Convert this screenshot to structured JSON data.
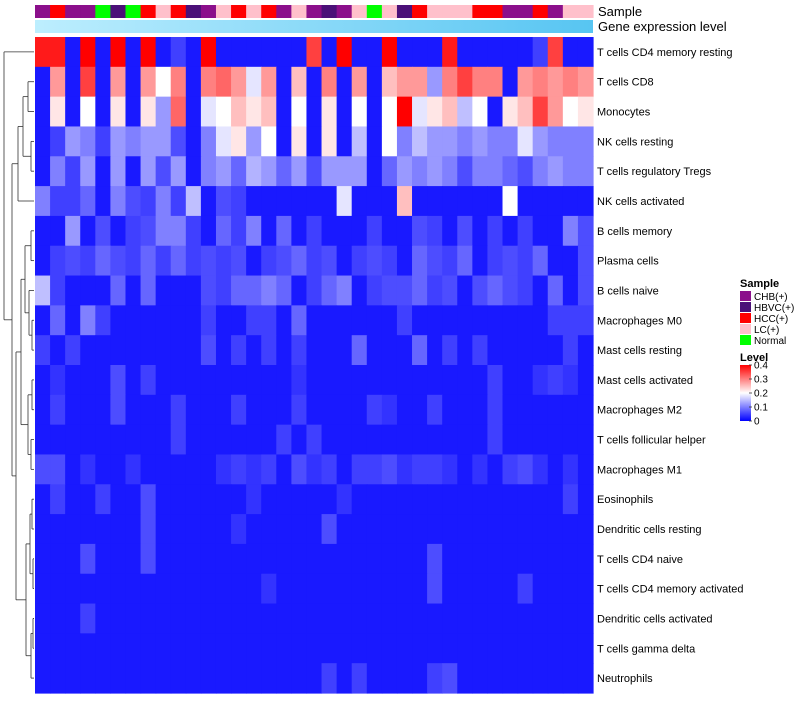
{
  "chart_data": {
    "type": "heatmap",
    "annotation_labels": {
      "sample": "Sample",
      "expression": "Gene expression level"
    },
    "sample_colors": {
      "CHB(+)": "#8B0F8B",
      "HBVC(+)": "#4B1078",
      "HCC(+)": "#FF0000",
      "LC(+)": "#FFC0CB",
      "Normal": "#00FF00"
    },
    "sample_groups": [
      "CHB(+)",
      "HCC(+)",
      "CHB(+)",
      "CHB(+)",
      "Normal",
      "HBVC(+)",
      "Normal",
      "HCC(+)",
      "LC(+)",
      "HCC(+)",
      "HBVC(+)",
      "CHB(+)",
      "LC(+)",
      "HCC(+)",
      "LC(+)",
      "HCC(+)",
      "CHB(+)",
      "LC(+)",
      "CHB(+)",
      "HBVC(+)",
      "CHB(+)",
      "LC(+)",
      "Normal",
      "LC(+)",
      "HBVC(+)",
      "HCC(+)",
      "LC(+)",
      "LC(+)",
      "LC(+)",
      "HCC(+)",
      "HCC(+)",
      "CHB(+)",
      "CHB(+)",
      "HCC(+)",
      "CHB(+)",
      "LC(+)",
      "LC(+)"
    ],
    "expression_gradient": [
      "#bdeefe",
      "#57c5f2"
    ],
    "rows": [
      "T cells CD4 memory resting",
      "T cells CD8",
      "Monocytes",
      "NK cells resting",
      "T cells regulatory  Tregs",
      "NK cells activated",
      "B cells memory",
      "Plasma cells",
      "B cells naive",
      "Macrophages M0",
      "Mast cells resting",
      "Mast cells activated",
      "Macrophages M2",
      "T cells follicular helper",
      "Macrophages M1",
      "Eosinophils",
      "Dendritic cells resting",
      "T cells CD4 naive",
      "T cells CD4 memory activated",
      "Dendritic cells activated",
      "T cells gamma delta",
      "Neutrophils"
    ],
    "values": [
      [
        0.38,
        0.38,
        0.02,
        0.42,
        0.02,
        0.42,
        0.02,
        0.42,
        0.02,
        0.05,
        0.02,
        0.42,
        0.02,
        0.02,
        0.02,
        0.02,
        0.02,
        0.02,
        0.35,
        0.02,
        0.42,
        0.02,
        0.02,
        0.42,
        0.02,
        0.02,
        0.02,
        0.38,
        0.02,
        0.02,
        0.02,
        0.02,
        0.02,
        0.05,
        0.35,
        0.02,
        0.02
      ],
      [
        0.02,
        0.28,
        0.02,
        0.35,
        0.02,
        0.28,
        0.02,
        0.28,
        0.2,
        0.3,
        0.02,
        0.3,
        0.32,
        0.28,
        0.18,
        0.28,
        0.02,
        0.25,
        0.02,
        0.3,
        0.02,
        0.28,
        0.02,
        0.25,
        0.28,
        0.28,
        0.12,
        0.3,
        0.35,
        0.3,
        0.3,
        0.02,
        0.28,
        0.3,
        0.28,
        0.3,
        0.28
      ],
      [
        0.02,
        0.22,
        0.02,
        0.2,
        0.02,
        0.22,
        0.02,
        0.22,
        0.12,
        0.32,
        0.02,
        0.18,
        0.2,
        0.25,
        0.22,
        0.25,
        0.02,
        0.2,
        0.02,
        0.22,
        0.02,
        0.2,
        0.02,
        0.2,
        0.4,
        0.18,
        0.22,
        0.25,
        0.15,
        0.2,
        0.02,
        0.22,
        0.25,
        0.35,
        0.28,
        0.2,
        0.22
      ],
      [
        0.02,
        0.05,
        0.12,
        0.1,
        0.05,
        0.12,
        0.1,
        0.12,
        0.12,
        0.06,
        0.02,
        0.1,
        0.18,
        0.22,
        0.12,
        0.2,
        0.02,
        0.22,
        0.02,
        0.22,
        0.02,
        0.15,
        0.02,
        0.2,
        0.1,
        0.15,
        0.12,
        0.12,
        0.1,
        0.12,
        0.1,
        0.1,
        0.18,
        0.12,
        0.1,
        0.1,
        0.1
      ],
      [
        0.02,
        0.1,
        0.05,
        0.12,
        0.02,
        0.12,
        0.02,
        0.12,
        0.06,
        0.12,
        0.02,
        0.1,
        0.12,
        0.08,
        0.14,
        0.12,
        0.08,
        0.12,
        0.06,
        0.12,
        0.12,
        0.12,
        0.02,
        0.08,
        0.12,
        0.1,
        0.12,
        0.1,
        0.06,
        0.1,
        0.1,
        0.08,
        0.06,
        0.1,
        0.12,
        0.1,
        0.1
      ],
      [
        0.1,
        0.05,
        0.05,
        0.08,
        0.02,
        0.1,
        0.06,
        0.05,
        0.1,
        0.05,
        0.15,
        0.02,
        0.06,
        0.05,
        0.02,
        0.02,
        0.02,
        0.02,
        0.02,
        0.02,
        0.18,
        0.02,
        0.02,
        0.02,
        0.25,
        0.02,
        0.02,
        0.02,
        0.02,
        0.02,
        0.02,
        0.2,
        0.02,
        0.02,
        0.02,
        0.02,
        0.02
      ],
      [
        0.02,
        0.02,
        0.12,
        0.02,
        0.06,
        0.02,
        0.05,
        0.06,
        0.1,
        0.1,
        0.05,
        0.02,
        0.08,
        0.05,
        0.1,
        0.02,
        0.08,
        0.02,
        0.05,
        0.02,
        0.02,
        0.02,
        0.05,
        0.02,
        0.02,
        0.06,
        0.05,
        0.02,
        0.06,
        0.02,
        0.05,
        0.02,
        0.05,
        0.02,
        0.02,
        0.1,
        0.06
      ],
      [
        0.02,
        0.05,
        0.06,
        0.05,
        0.08,
        0.06,
        0.05,
        0.08,
        0.05,
        0.08,
        0.05,
        0.06,
        0.05,
        0.06,
        0.02,
        0.05,
        0.06,
        0.08,
        0.05,
        0.06,
        0.02,
        0.05,
        0.06,
        0.05,
        0.02,
        0.08,
        0.06,
        0.05,
        0.08,
        0.02,
        0.05,
        0.06,
        0.05,
        0.08,
        0.02,
        0.02,
        0.06
      ],
      [
        0.15,
        0.05,
        0.02,
        0.02,
        0.02,
        0.08,
        0.02,
        0.08,
        0.02,
        0.02,
        0.02,
        0.06,
        0.05,
        0.08,
        0.08,
        0.1,
        0.08,
        0.02,
        0.05,
        0.08,
        0.1,
        0.02,
        0.05,
        0.06,
        0.06,
        0.08,
        0.05,
        0.06,
        0.02,
        0.06,
        0.08,
        0.06,
        0.05,
        0.02,
        0.08,
        0.02,
        0.06
      ],
      [
        0.02,
        0.08,
        0.02,
        0.1,
        0.05,
        0.02,
        0.02,
        0.02,
        0.02,
        0.02,
        0.02,
        0.05,
        0.02,
        0.02,
        0.05,
        0.05,
        0.02,
        0.08,
        0.02,
        0.02,
        0.02,
        0.02,
        0.02,
        0.02,
        0.05,
        0.02,
        0.02,
        0.02,
        0.02,
        0.02,
        0.02,
        0.02,
        0.02,
        0.02,
        0.05,
        0.05,
        0.05
      ],
      [
        0.05,
        0.02,
        0.05,
        0.02,
        0.02,
        0.02,
        0.02,
        0.02,
        0.02,
        0.02,
        0.02,
        0.06,
        0.02,
        0.05,
        0.02,
        0.05,
        0.02,
        0.05,
        0.02,
        0.02,
        0.02,
        0.08,
        0.02,
        0.02,
        0.02,
        0.08,
        0.02,
        0.05,
        0.02,
        0.05,
        0.02,
        0.02,
        0.02,
        0.02,
        0.02,
        0.05,
        0.02
      ],
      [
        0.02,
        0.04,
        0.02,
        0.02,
        0.02,
        0.06,
        0.02,
        0.05,
        0.02,
        0.02,
        0.02,
        0.02,
        0.02,
        0.02,
        0.02,
        0.02,
        0.02,
        0.04,
        0.02,
        0.02,
        0.02,
        0.02,
        0.02,
        0.02,
        0.02,
        0.02,
        0.02,
        0.02,
        0.02,
        0.02,
        0.05,
        0.02,
        0.02,
        0.04,
        0.05,
        0.04,
        0.02
      ],
      [
        0.02,
        0.05,
        0.02,
        0.02,
        0.02,
        0.06,
        0.02,
        0.02,
        0.02,
        0.05,
        0.02,
        0.02,
        0.02,
        0.05,
        0.02,
        0.02,
        0.02,
        0.05,
        0.02,
        0.02,
        0.02,
        0.02,
        0.05,
        0.04,
        0.02,
        0.02,
        0.05,
        0.02,
        0.02,
        0.02,
        0.05,
        0.02,
        0.02,
        0.02,
        0.02,
        0.02,
        0.02
      ],
      [
        0.02,
        0.02,
        0.02,
        0.02,
        0.02,
        0.02,
        0.02,
        0.02,
        0.02,
        0.05,
        0.02,
        0.02,
        0.02,
        0.02,
        0.02,
        0.02,
        0.05,
        0.02,
        0.05,
        0.02,
        0.02,
        0.02,
        0.02,
        0.02,
        0.02,
        0.02,
        0.02,
        0.02,
        0.02,
        0.02,
        0.05,
        0.02,
        0.02,
        0.02,
        0.02,
        0.02,
        0.02
      ],
      [
        0.06,
        0.06,
        0.02,
        0.04,
        0.02,
        0.02,
        0.04,
        0.02,
        0.02,
        0.02,
        0.02,
        0.02,
        0.04,
        0.05,
        0.04,
        0.05,
        0.02,
        0.06,
        0.04,
        0.05,
        0.02,
        0.05,
        0.05,
        0.06,
        0.04,
        0.05,
        0.05,
        0.04,
        0.02,
        0.04,
        0.02,
        0.05,
        0.06,
        0.04,
        0.02,
        0.04,
        0.02
      ],
      [
        0.02,
        0.05,
        0.02,
        0.02,
        0.05,
        0.02,
        0.02,
        0.06,
        0.02,
        0.02,
        0.02,
        0.02,
        0.02,
        0.02,
        0.04,
        0.02,
        0.02,
        0.02,
        0.02,
        0.02,
        0.04,
        0.02,
        0.02,
        0.02,
        0.02,
        0.02,
        0.02,
        0.02,
        0.02,
        0.02,
        0.02,
        0.02,
        0.02,
        0.02,
        0.02,
        0.05,
        0.02
      ],
      [
        0.02,
        0.02,
        0.02,
        0.02,
        0.02,
        0.02,
        0.02,
        0.06,
        0.02,
        0.02,
        0.02,
        0.02,
        0.02,
        0.04,
        0.02,
        0.02,
        0.02,
        0.02,
        0.02,
        0.06,
        0.02,
        0.02,
        0.02,
        0.02,
        0.02,
        0.02,
        0.02,
        0.02,
        0.02,
        0.02,
        0.02,
        0.02,
        0.02,
        0.02,
        0.02,
        0.02,
        0.02
      ],
      [
        0.02,
        0.02,
        0.02,
        0.06,
        0.02,
        0.02,
        0.02,
        0.06,
        0.02,
        0.02,
        0.02,
        0.02,
        0.02,
        0.02,
        0.02,
        0.02,
        0.02,
        0.02,
        0.02,
        0.02,
        0.02,
        0.02,
        0.02,
        0.02,
        0.02,
        0.02,
        0.06,
        0.02,
        0.02,
        0.02,
        0.02,
        0.02,
        0.02,
        0.02,
        0.02,
        0.02,
        0.02
      ],
      [
        0.02,
        0.02,
        0.02,
        0.02,
        0.02,
        0.02,
        0.02,
        0.02,
        0.02,
        0.02,
        0.02,
        0.02,
        0.02,
        0.02,
        0.02,
        0.04,
        0.02,
        0.02,
        0.02,
        0.02,
        0.02,
        0.02,
        0.02,
        0.02,
        0.02,
        0.02,
        0.06,
        0.02,
        0.02,
        0.02,
        0.02,
        0.02,
        0.05,
        0.02,
        0.02,
        0.02,
        0.02
      ],
      [
        0.02,
        0.02,
        0.02,
        0.05,
        0.02,
        0.02,
        0.02,
        0.02,
        0.02,
        0.02,
        0.02,
        0.02,
        0.02,
        0.02,
        0.02,
        0.02,
        0.02,
        0.02,
        0.02,
        0.02,
        0.02,
        0.02,
        0.02,
        0.02,
        0.02,
        0.02,
        0.02,
        0.02,
        0.02,
        0.02,
        0.02,
        0.02,
        0.02,
        0.02,
        0.02,
        0.02,
        0.02
      ],
      [
        0.02,
        0.02,
        0.02,
        0.02,
        0.02,
        0.02,
        0.02,
        0.02,
        0.02,
        0.02,
        0.02,
        0.02,
        0.02,
        0.02,
        0.02,
        0.02,
        0.02,
        0.02,
        0.02,
        0.02,
        0.02,
        0.02,
        0.02,
        0.02,
        0.02,
        0.02,
        0.02,
        0.02,
        0.02,
        0.02,
        0.02,
        0.02,
        0.02,
        0.02,
        0.02,
        0.02,
        0.02
      ],
      [
        0.02,
        0.02,
        0.02,
        0.02,
        0.02,
        0.02,
        0.02,
        0.02,
        0.02,
        0.02,
        0.02,
        0.02,
        0.02,
        0.02,
        0.02,
        0.02,
        0.02,
        0.02,
        0.02,
        0.05,
        0.02,
        0.05,
        0.02,
        0.02,
        0.02,
        0.02,
        0.05,
        0.06,
        0.02,
        0.02,
        0.02,
        0.02,
        0.02,
        0.02,
        0.02,
        0.02,
        0.02
      ]
    ],
    "color_scale": {
      "low": "#0000FF",
      "mid": "#FFFFFF",
      "high": "#FF0000",
      "min": 0,
      "mid_value": 0.2,
      "max": 0.4
    },
    "legend": {
      "sample_title": "Sample",
      "sample_items": [
        "CHB(+)",
        "HBVC(+)",
        "HCC(+)",
        "LC(+)",
        "Normal"
      ],
      "level_title": "Level",
      "level_ticks": [
        0.4,
        0.3,
        0.2,
        0.1,
        0
      ],
      "placement": "right"
    }
  }
}
